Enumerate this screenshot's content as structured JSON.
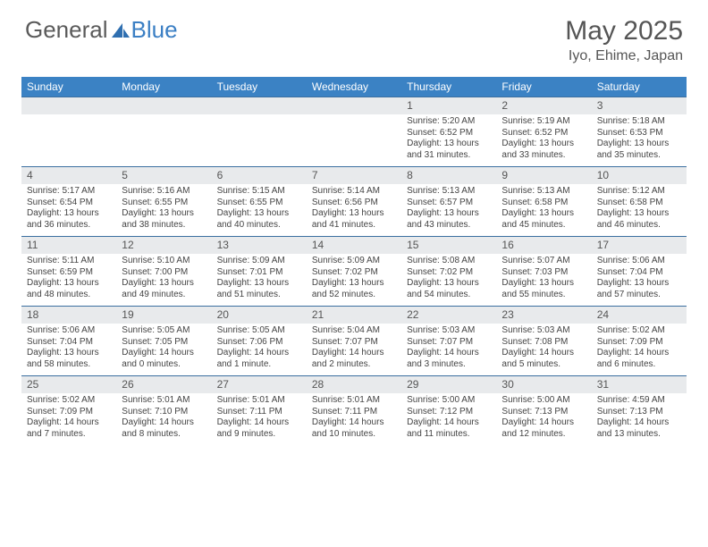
{
  "logo": {
    "text1": "General",
    "text2": "Blue"
  },
  "title": "May 2025",
  "location": "Iyo, Ehime, Japan",
  "header_bg": "#3b82c4",
  "header_fg": "#ffffff",
  "daynum_bg": "#e8eaec",
  "rule_color": "#3b6fa0",
  "columns": [
    "Sunday",
    "Monday",
    "Tuesday",
    "Wednesday",
    "Thursday",
    "Friday",
    "Saturday"
  ],
  "weeks": [
    [
      null,
      null,
      null,
      null,
      {
        "n": "1",
        "sr": "5:20 AM",
        "ss": "6:52 PM",
        "dl": "13 hours and 31 minutes."
      },
      {
        "n": "2",
        "sr": "5:19 AM",
        "ss": "6:52 PM",
        "dl": "13 hours and 33 minutes."
      },
      {
        "n": "3",
        "sr": "5:18 AM",
        "ss": "6:53 PM",
        "dl": "13 hours and 35 minutes."
      }
    ],
    [
      {
        "n": "4",
        "sr": "5:17 AM",
        "ss": "6:54 PM",
        "dl": "13 hours and 36 minutes."
      },
      {
        "n": "5",
        "sr": "5:16 AM",
        "ss": "6:55 PM",
        "dl": "13 hours and 38 minutes."
      },
      {
        "n": "6",
        "sr": "5:15 AM",
        "ss": "6:55 PM",
        "dl": "13 hours and 40 minutes."
      },
      {
        "n": "7",
        "sr": "5:14 AM",
        "ss": "6:56 PM",
        "dl": "13 hours and 41 minutes."
      },
      {
        "n": "8",
        "sr": "5:13 AM",
        "ss": "6:57 PM",
        "dl": "13 hours and 43 minutes."
      },
      {
        "n": "9",
        "sr": "5:13 AM",
        "ss": "6:58 PM",
        "dl": "13 hours and 45 minutes."
      },
      {
        "n": "10",
        "sr": "5:12 AM",
        "ss": "6:58 PM",
        "dl": "13 hours and 46 minutes."
      }
    ],
    [
      {
        "n": "11",
        "sr": "5:11 AM",
        "ss": "6:59 PM",
        "dl": "13 hours and 48 minutes."
      },
      {
        "n": "12",
        "sr": "5:10 AM",
        "ss": "7:00 PM",
        "dl": "13 hours and 49 minutes."
      },
      {
        "n": "13",
        "sr": "5:09 AM",
        "ss": "7:01 PM",
        "dl": "13 hours and 51 minutes."
      },
      {
        "n": "14",
        "sr": "5:09 AM",
        "ss": "7:02 PM",
        "dl": "13 hours and 52 minutes."
      },
      {
        "n": "15",
        "sr": "5:08 AM",
        "ss": "7:02 PM",
        "dl": "13 hours and 54 minutes."
      },
      {
        "n": "16",
        "sr": "5:07 AM",
        "ss": "7:03 PM",
        "dl": "13 hours and 55 minutes."
      },
      {
        "n": "17",
        "sr": "5:06 AM",
        "ss": "7:04 PM",
        "dl": "13 hours and 57 minutes."
      }
    ],
    [
      {
        "n": "18",
        "sr": "5:06 AM",
        "ss": "7:04 PM",
        "dl": "13 hours and 58 minutes."
      },
      {
        "n": "19",
        "sr": "5:05 AM",
        "ss": "7:05 PM",
        "dl": "14 hours and 0 minutes."
      },
      {
        "n": "20",
        "sr": "5:05 AM",
        "ss": "7:06 PM",
        "dl": "14 hours and 1 minute."
      },
      {
        "n": "21",
        "sr": "5:04 AM",
        "ss": "7:07 PM",
        "dl": "14 hours and 2 minutes."
      },
      {
        "n": "22",
        "sr": "5:03 AM",
        "ss": "7:07 PM",
        "dl": "14 hours and 3 minutes."
      },
      {
        "n": "23",
        "sr": "5:03 AM",
        "ss": "7:08 PM",
        "dl": "14 hours and 5 minutes."
      },
      {
        "n": "24",
        "sr": "5:02 AM",
        "ss": "7:09 PM",
        "dl": "14 hours and 6 minutes."
      }
    ],
    [
      {
        "n": "25",
        "sr": "5:02 AM",
        "ss": "7:09 PM",
        "dl": "14 hours and 7 minutes."
      },
      {
        "n": "26",
        "sr": "5:01 AM",
        "ss": "7:10 PM",
        "dl": "14 hours and 8 minutes."
      },
      {
        "n": "27",
        "sr": "5:01 AM",
        "ss": "7:11 PM",
        "dl": "14 hours and 9 minutes."
      },
      {
        "n": "28",
        "sr": "5:01 AM",
        "ss": "7:11 PM",
        "dl": "14 hours and 10 minutes."
      },
      {
        "n": "29",
        "sr": "5:00 AM",
        "ss": "7:12 PM",
        "dl": "14 hours and 11 minutes."
      },
      {
        "n": "30",
        "sr": "5:00 AM",
        "ss": "7:13 PM",
        "dl": "14 hours and 12 minutes."
      },
      {
        "n": "31",
        "sr": "4:59 AM",
        "ss": "7:13 PM",
        "dl": "14 hours and 13 minutes."
      }
    ]
  ],
  "labels": {
    "sunrise": "Sunrise:",
    "sunset": "Sunset:",
    "daylight": "Daylight:"
  }
}
